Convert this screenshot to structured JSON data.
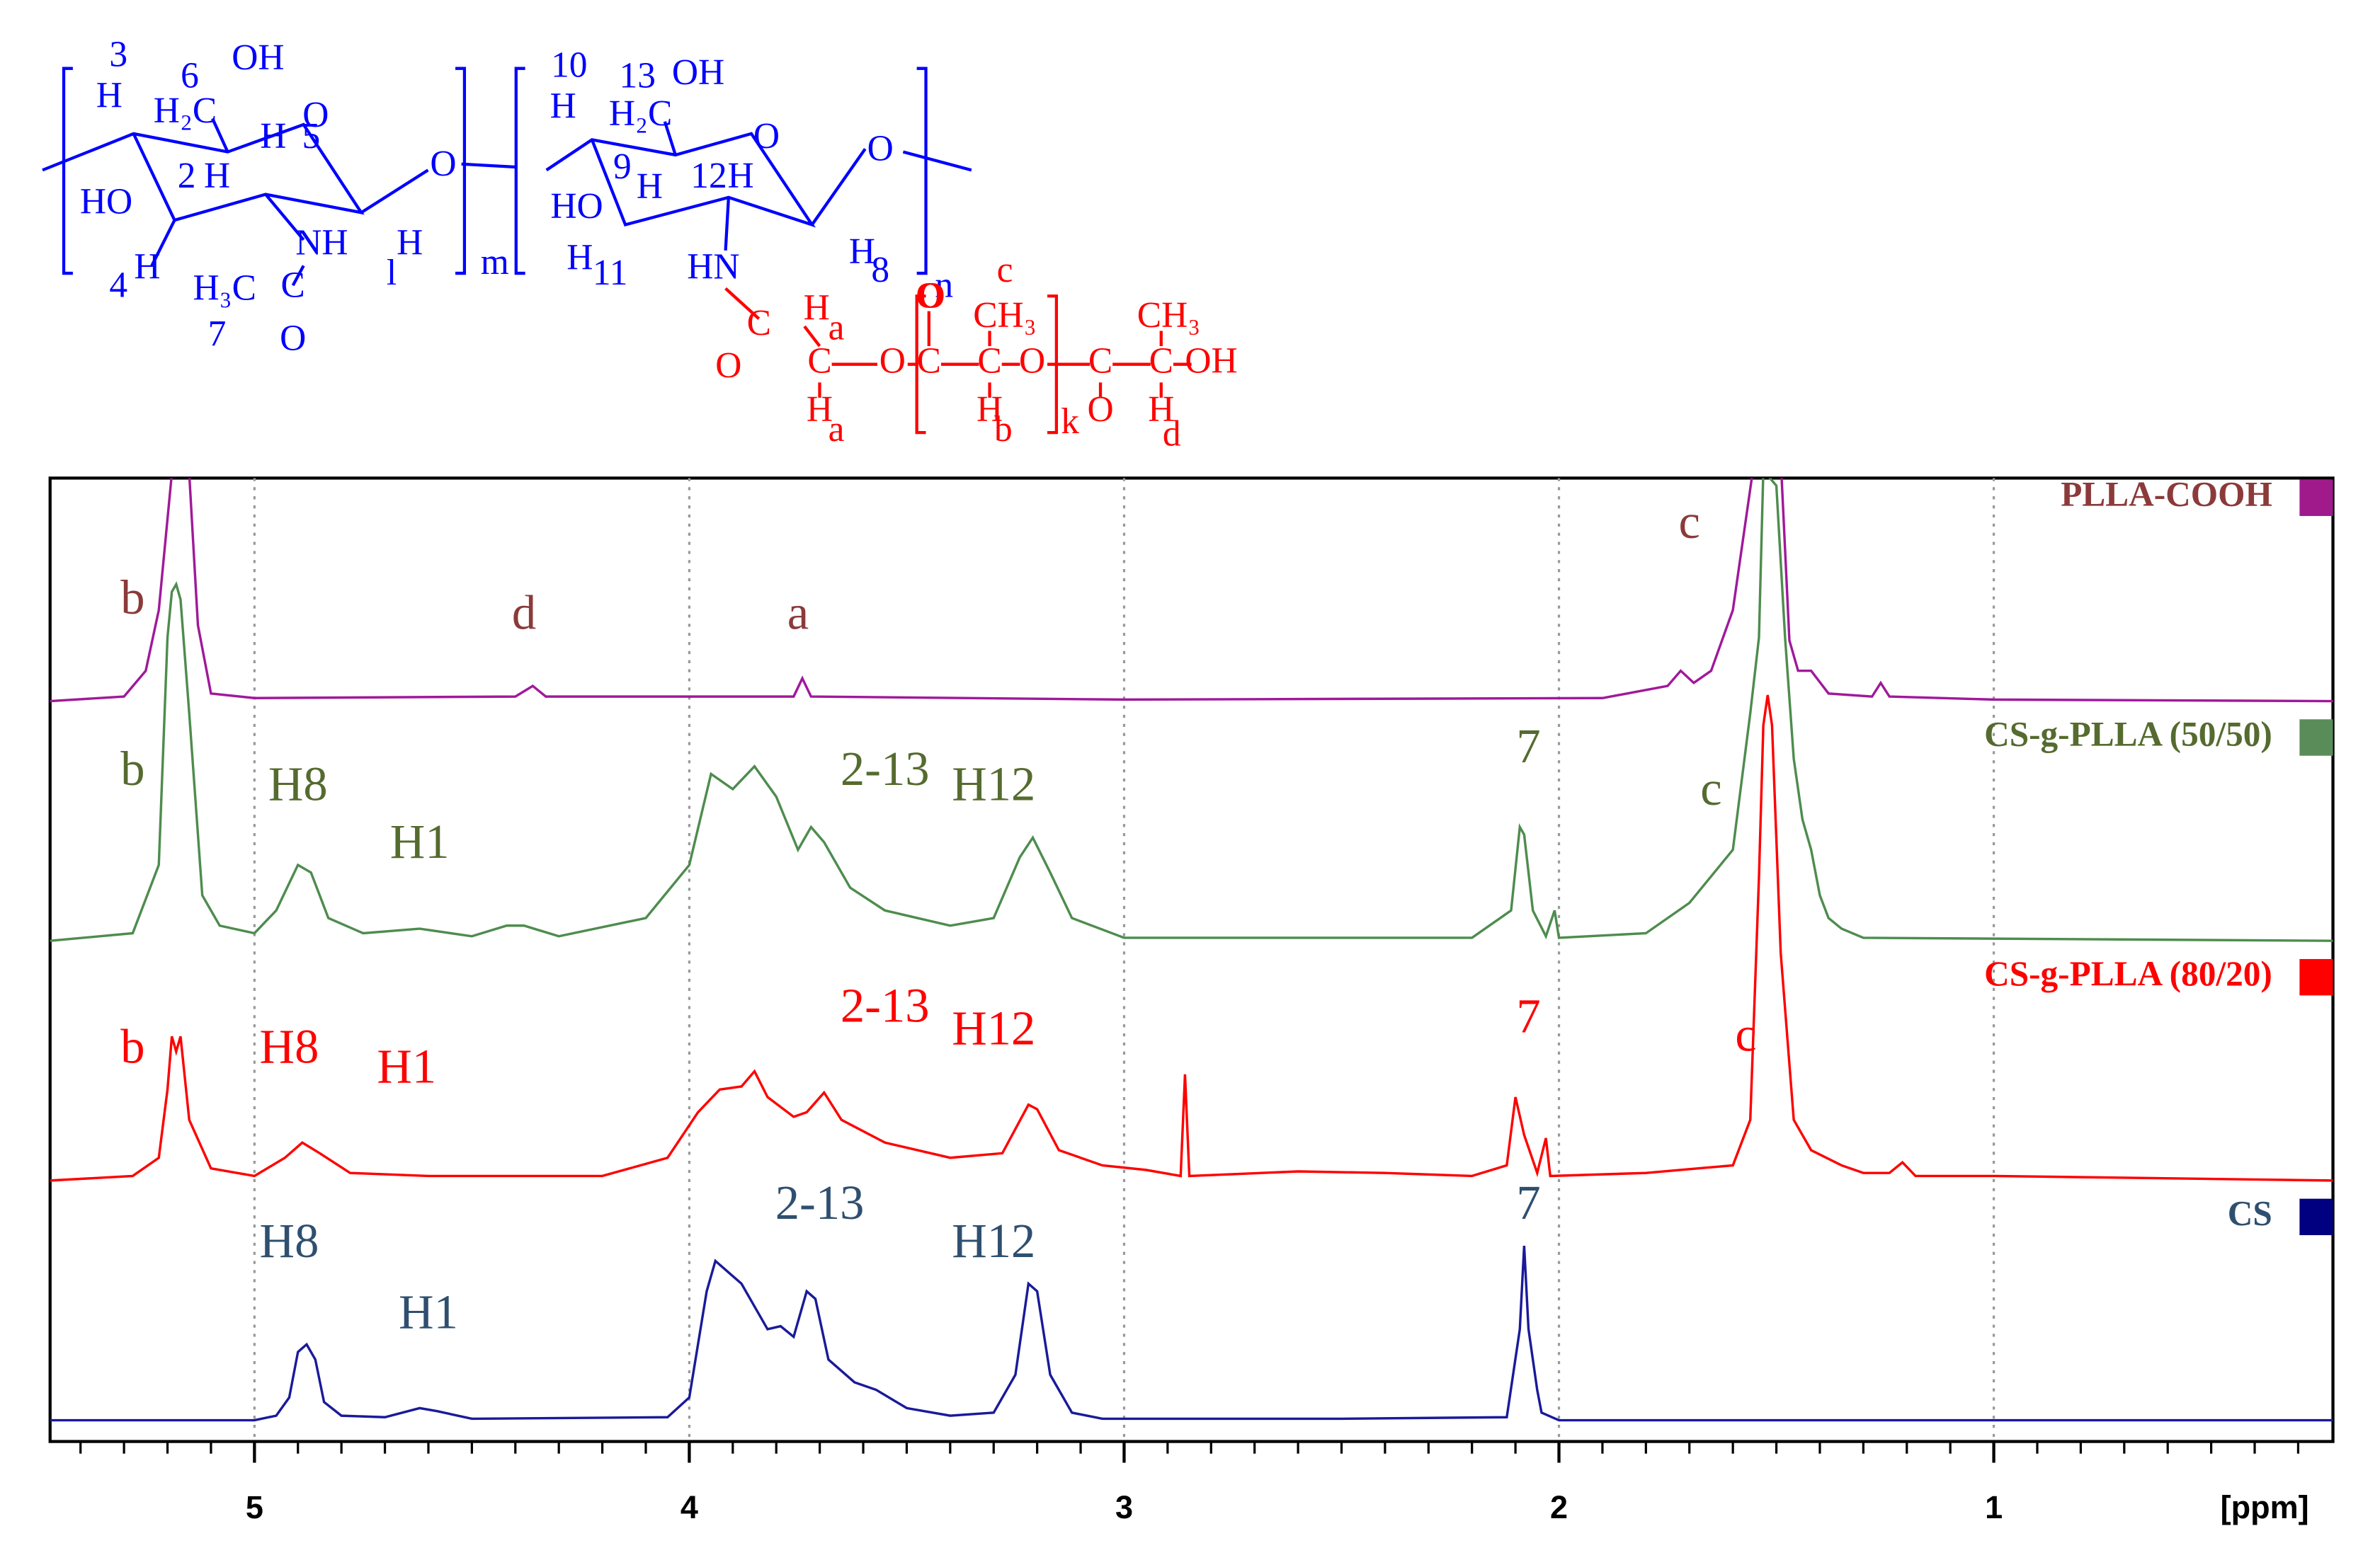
{
  "structure": {
    "labels": [
      {
        "text": "3",
        "color": "#0000ff"
      },
      {
        "text": "H",
        "color": "#0000ff"
      },
      {
        "text": "6",
        "color": "#0000ff"
      },
      {
        "text": "OH",
        "color": "#0000ff"
      },
      {
        "text": "H₂C",
        "color": "#0000ff"
      },
      {
        "text": "O",
        "color": "#0000ff"
      },
      {
        "text": "2",
        "color": "#0000ff"
      },
      {
        "text": "H",
        "color": "#0000ff"
      },
      {
        "text": "H",
        "color": "#0000ff"
      },
      {
        "text": "5",
        "color": "#0000ff"
      },
      {
        "text": "HO",
        "color": "#0000ff"
      },
      {
        "text": "NH",
        "color": "#0000ff"
      },
      {
        "text": "H",
        "color": "#0000ff"
      },
      {
        "text": "l",
        "color": "#0000ff"
      },
      {
        "text": "4",
        "color": "#0000ff"
      },
      {
        "text": "H",
        "color": "#0000ff"
      },
      {
        "text": "H₃C",
        "color": "#0000ff"
      },
      {
        "text": "C",
        "color": "#0000ff"
      },
      {
        "text": "7",
        "color": "#0000ff"
      },
      {
        "text": "O",
        "color": "#0000ff"
      },
      {
        "text": "O",
        "color": "#0000ff"
      },
      {
        "text": "m",
        "color": "#0000ff"
      },
      {
        "text": "10",
        "color": "#0000ff"
      },
      {
        "text": "H",
        "color": "#0000ff"
      },
      {
        "text": "13",
        "color": "#0000ff"
      },
      {
        "text": "OH",
        "color": "#0000ff"
      },
      {
        "text": "H₂C",
        "color": "#0000ff"
      },
      {
        "text": "O",
        "color": "#0000ff"
      },
      {
        "text": "9",
        "color": "#0000ff"
      },
      {
        "text": "H",
        "color": "#0000ff"
      },
      {
        "text": "12",
        "color": "#0000ff"
      },
      {
        "text": "H",
        "color": "#0000ff"
      },
      {
        "text": "HO",
        "color": "#0000ff"
      },
      {
        "text": "O",
        "color": "#0000ff"
      },
      {
        "text": "H",
        "color": "#0000ff"
      },
      {
        "text": "11",
        "color": "#0000ff"
      },
      {
        "text": "HN",
        "color": "#0000ff"
      },
      {
        "text": "H",
        "color": "#0000ff"
      },
      {
        "text": "8",
        "color": "#0000ff"
      },
      {
        "text": "n",
        "color": "#0000ff"
      },
      {
        "text": "c",
        "color": "#ff0000"
      },
      {
        "text": "O",
        "color": "#ff0000"
      },
      {
        "text": "CH₃",
        "color": "#ff0000"
      },
      {
        "text": "CH₃",
        "color": "#ff0000"
      },
      {
        "text": "H",
        "color": "#ff0000"
      },
      {
        "text": "a",
        "color": "#ff0000"
      },
      {
        "text": "O",
        "color": "#ff0000"
      },
      {
        "text": "C",
        "color": "#ff0000"
      },
      {
        "text": "C",
        "color": "#ff0000"
      },
      {
        "text": "O",
        "color": "#ff0000"
      },
      {
        "text": "C",
        "color": "#ff0000"
      },
      {
        "text": "C",
        "color": "#ff0000"
      },
      {
        "text": "O",
        "color": "#ff0000"
      },
      {
        "text": "C",
        "color": "#ff0000"
      },
      {
        "text": "C",
        "color": "#ff0000"
      },
      {
        "text": "OH",
        "color": "#ff0000"
      },
      {
        "text": "H",
        "color": "#ff0000"
      },
      {
        "text": "a",
        "color": "#ff0000"
      },
      {
        "text": "H",
        "color": "#ff0000"
      },
      {
        "text": "b",
        "color": "#ff0000"
      },
      {
        "text": "k",
        "color": "#ff0000"
      },
      {
        "text": "O",
        "color": "#ff0000"
      },
      {
        "text": "H",
        "color": "#ff0000"
      },
      {
        "text": "d",
        "color": "#ff0000"
      },
      {
        "text": "O",
        "color": "#ff0000"
      }
    ]
  },
  "chart_data": {
    "type": "line",
    "x_label": "[ppm]",
    "xlim": [
      5.47,
      0.22
    ],
    "xticks": [
      5,
      4,
      3,
      2,
      1
    ],
    "xminorticks": [
      5.4,
      5.3,
      5.2,
      5.1,
      4.9,
      4.8,
      4.7,
      4.6,
      4.5,
      4.4,
      4.3,
      4.2,
      4.1,
      3.9,
      3.8,
      3.7,
      3.6,
      3.5,
      3.4,
      3.3,
      3.2,
      3.1,
      2.9,
      2.8,
      2.7,
      2.6,
      2.5,
      2.4,
      2.3,
      2.2,
      2.1,
      1.9,
      1.8,
      1.7,
      1.6,
      1.5,
      1.4,
      1.3,
      1.2,
      1.1,
      0.9,
      0.8,
      0.7,
      0.6,
      0.5,
      0.4,
      0.3
    ],
    "grid": true,
    "legend": "right",
    "series": [
      {
        "name": "PLLA-COOH",
        "color": "#a0199a",
        "label_color": "#8b3a3a",
        "swatch": "#a01a8c",
        "x": [
          5.47,
          5.3,
          5.25,
          5.22,
          5.2,
          5.19,
          5.17,
          5.15,
          5.13,
          5.1,
          5.0,
          4.4,
          4.36,
          4.33,
          3.76,
          3.74,
          3.72,
          3.0,
          1.9,
          1.75,
          1.72,
          1.69,
          1.65,
          1.6,
          1.57,
          1.55,
          1.53,
          1.51,
          1.49,
          1.47,
          1.45,
          1.42,
          1.38,
          1.28,
          1.26,
          1.24,
          1.0,
          0.22
        ],
        "values": [
          0,
          3,
          20,
          60,
          120,
          150,
          160,
          150,
          50,
          5,
          2,
          3,
          10,
          3,
          3,
          15,
          3,
          1,
          2,
          10,
          20,
          12,
          20,
          60,
          120,
          160,
          160,
          160,
          160,
          40,
          20,
          20,
          5,
          3,
          12,
          3,
          1,
          0
        ],
        "annotations": [
          {
            "text": "b",
            "x": 5.28,
            "y": 65
          },
          {
            "text": "d",
            "x": 4.38,
            "y": 55
          },
          {
            "text": "a",
            "x": 3.75,
            "y": 55
          },
          {
            "text": "c",
            "x": 1.7,
            "y": 115
          }
        ]
      },
      {
        "name": "CS-g-PLLA (50/50)",
        "color": "#4e8c4e",
        "label_color": "#556b2f",
        "swatch": "#5a8c5a",
        "x": [
          5.47,
          5.28,
          5.22,
          5.2,
          5.19,
          5.18,
          5.17,
          5.15,
          5.12,
          5.08,
          5.0,
          4.95,
          4.9,
          4.87,
          4.83,
          4.75,
          4.62,
          4.5,
          4.42,
          4.38,
          4.3,
          4.1,
          4.0,
          3.95,
          3.9,
          3.85,
          3.8,
          3.75,
          3.72,
          3.69,
          3.63,
          3.55,
          3.4,
          3.3,
          3.24,
          3.21,
          3.17,
          3.12,
          3.0,
          2.2,
          2.11,
          2.09,
          2.08,
          2.06,
          2.03,
          2.01,
          2.0,
          1.8,
          1.7,
          1.6,
          1.56,
          1.54,
          1.53,
          1.5,
          1.48,
          1.46,
          1.44,
          1.42,
          1.4,
          1.38,
          1.35,
          1.3,
          0.22
        ],
        "values": [
          0,
          5,
          50,
          200,
          230,
          235,
          225,
          150,
          30,
          10,
          5,
          20,
          50,
          45,
          15,
          5,
          8,
          3,
          10,
          10,
          3,
          15,
          50,
          110,
          100,
          115,
          95,
          60,
          75,
          65,
          35,
          20,
          10,
          15,
          55,
          68,
          45,
          15,
          2,
          2,
          20,
          75,
          70,
          20,
          3,
          20,
          2,
          5,
          25,
          60,
          150,
          200,
          310,
          300,
          200,
          120,
          80,
          60,
          30,
          15,
          8,
          2,
          0
        ],
        "annotations": [
          {
            "text": "b",
            "x": 5.28,
            "y": 110
          },
          {
            "text": "H8",
            "x": 4.9,
            "y": 100
          },
          {
            "text": "H1",
            "x": 4.62,
            "y": 62
          },
          {
            "text": "2-13",
            "x": 3.55,
            "y": 110
          },
          {
            "text": "H12",
            "x": 3.3,
            "y": 100
          },
          {
            "text": "7",
            "x": 2.07,
            "y": 125
          },
          {
            "text": "c",
            "x": 1.65,
            "y": 97
          }
        ]
      },
      {
        "name": "CS-g-PLLA (80/20)",
        "color": "#ff0000",
        "label_color": "#ff0000",
        "swatch": "#ff0000",
        "x": [
          5.47,
          5.28,
          5.22,
          5.2,
          5.19,
          5.18,
          5.17,
          5.15,
          5.1,
          5.0,
          4.93,
          4.89,
          4.85,
          4.78,
          4.6,
          4.2,
          4.05,
          3.98,
          3.93,
          3.88,
          3.85,
          3.82,
          3.76,
          3.73,
          3.69,
          3.65,
          3.55,
          3.4,
          3.28,
          3.22,
          3.2,
          3.15,
          3.05,
          2.95,
          2.87,
          2.86,
          2.85,
          2.6,
          2.4,
          2.2,
          2.12,
          2.1,
          2.08,
          2.05,
          2.03,
          2.02,
          1.8,
          1.6,
          1.56,
          1.54,
          1.53,
          1.52,
          1.51,
          1.49,
          1.46,
          1.42,
          1.35,
          1.3,
          1.24,
          1.21,
          1.18,
          1.0,
          0.22
        ],
        "values": [
          0,
          3,
          15,
          60,
          95,
          85,
          95,
          40,
          8,
          3,
          15,
          25,
          18,
          5,
          3,
          3,
          15,
          45,
          60,
          62,
          72,
          55,
          42,
          45,
          58,
          40,
          25,
          15,
          18,
          50,
          47,
          20,
          10,
          7,
          3,
          70,
          3,
          6,
          5,
          3,
          10,
          55,
          30,
          5,
          28,
          3,
          5,
          10,
          40,
          200,
          300,
          320,
          300,
          150,
          40,
          20,
          10,
          5,
          5,
          12,
          3,
          3,
          0
        ],
        "annotations": [
          {
            "text": "b",
            "x": 5.28,
            "y": 85
          },
          {
            "text": "H8",
            "x": 4.92,
            "y": 85
          },
          {
            "text": "H1",
            "x": 4.65,
            "y": 72
          },
          {
            "text": "2-13",
            "x": 3.55,
            "y": 112
          },
          {
            "text": "H12",
            "x": 3.3,
            "y": 97
          },
          {
            "text": "7",
            "x": 2.07,
            "y": 105
          },
          {
            "text": "c",
            "x": 1.57,
            "y": 93
          }
        ]
      },
      {
        "name": "CS",
        "color": "#1a1a9a",
        "label_color": "#2f4f6f",
        "swatch": "#000080",
        "x": [
          5.47,
          5.0,
          4.95,
          4.92,
          4.9,
          4.88,
          4.86,
          4.84,
          4.8,
          4.7,
          4.62,
          4.58,
          4.5,
          4.05,
          4.0,
          3.96,
          3.94,
          3.92,
          3.9,
          3.88,
          3.85,
          3.82,
          3.79,
          3.76,
          3.73,
          3.71,
          3.68,
          3.62,
          3.57,
          3.5,
          3.4,
          3.3,
          3.25,
          3.22,
          3.2,
          3.17,
          3.12,
          3.05,
          2.5,
          2.12,
          2.09,
          2.08,
          2.07,
          2.05,
          2.04,
          2.0,
          1.2,
          0.22
        ],
        "values": [
          0,
          0,
          3,
          15,
          45,
          50,
          40,
          12,
          3,
          2,
          8,
          6,
          1,
          2,
          15,
          85,
          105,
          100,
          95,
          90,
          75,
          60,
          62,
          55,
          85,
          80,
          40,
          25,
          20,
          8,
          3,
          5,
          30,
          90,
          85,
          30,
          5,
          1,
          1,
          2,
          60,
          115,
          60,
          20,
          5,
          0,
          0,
          0
        ],
        "annotations": [
          {
            "text": "H8",
            "x": 4.92,
            "y": 115
          },
          {
            "text": "H1",
            "x": 4.6,
            "y": 68
          },
          {
            "text": "2-13",
            "x": 3.7,
            "y": 140
          },
          {
            "text": "H12",
            "x": 3.3,
            "y": 115
          },
          {
            "text": "7",
            "x": 2.07,
            "y": 140
          }
        ]
      }
    ]
  }
}
